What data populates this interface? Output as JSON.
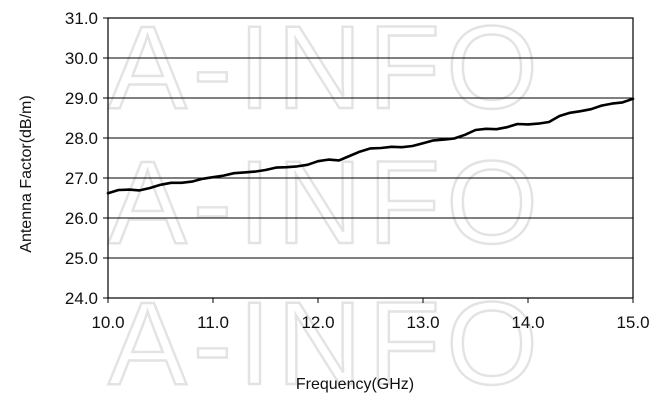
{
  "chart_data": {
    "type": "line",
    "title": "",
    "xlabel": "Frequency(GHz)",
    "ylabel": "Antenna Factor(dB/m)",
    "xlim": [
      10.0,
      15.0
    ],
    "ylim": [
      24.0,
      31.0
    ],
    "x_ticks": [
      "10.0",
      "11.0",
      "12.0",
      "13.0",
      "14.0",
      "15.0"
    ],
    "y_ticks": [
      "24.0",
      "25.0",
      "26.0",
      "27.0",
      "28.0",
      "29.0",
      "30.0",
      "31.0"
    ],
    "grid": "horizontal",
    "legend": "none",
    "line_color": "#000000",
    "watermark": "A-INFO",
    "series": [
      {
        "x": [
          10.0,
          10.1,
          10.2,
          10.3,
          10.4,
          10.5,
          10.6,
          10.7,
          10.8,
          10.9,
          11.0,
          11.1,
          11.2,
          11.3,
          11.4,
          11.5,
          11.6,
          11.7,
          11.8,
          11.9,
          12.0,
          12.1,
          12.2,
          12.3,
          12.4,
          12.5,
          12.6,
          12.7,
          12.8,
          12.9,
          13.0,
          13.1,
          13.2,
          13.3,
          13.4,
          13.5,
          13.6,
          13.7,
          13.8,
          13.9,
          14.0,
          14.1,
          14.2,
          14.3,
          14.4,
          14.5,
          14.6,
          14.7,
          14.8,
          14.9,
          15.0
        ],
        "values": [
          26.62,
          26.7,
          26.71,
          26.69,
          26.75,
          26.83,
          26.88,
          26.88,
          26.91,
          26.98,
          27.02,
          27.06,
          27.12,
          27.14,
          27.16,
          27.2,
          27.26,
          27.27,
          27.29,
          27.33,
          27.42,
          27.46,
          27.44,
          27.55,
          27.66,
          27.74,
          27.75,
          27.78,
          27.77,
          27.8,
          27.87,
          27.94,
          27.96,
          27.99,
          28.08,
          28.2,
          28.23,
          28.22,
          28.27,
          28.35,
          28.34,
          28.36,
          28.4,
          28.55,
          28.63,
          28.67,
          28.72,
          28.81,
          28.86,
          28.89,
          28.98
        ]
      }
    ]
  }
}
